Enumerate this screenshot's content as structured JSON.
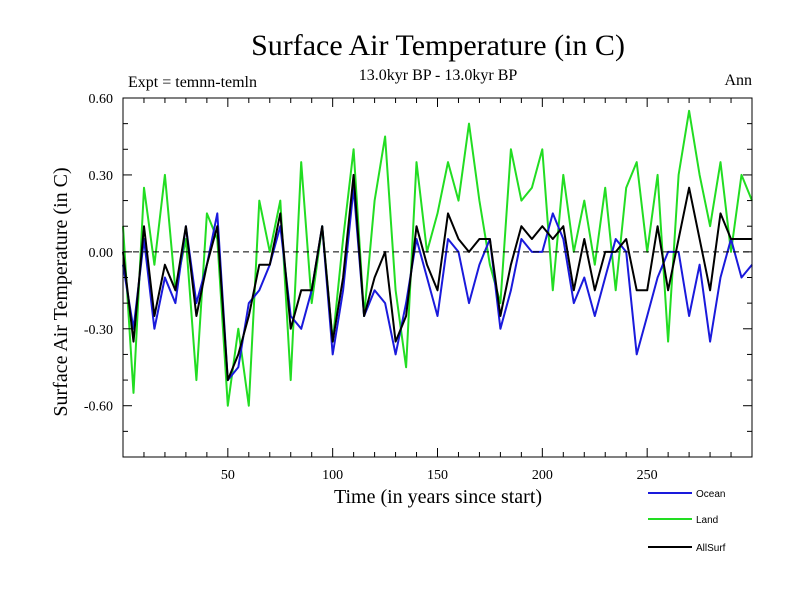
{
  "chart_data": {
    "type": "line",
    "title": "Surface Air Temperature (in C)",
    "subtitle": "13.0kyr BP - 13.0kyr BP",
    "left_label": "Expt = temnn-temln",
    "right_label": "Ann",
    "xlabel": "Time (in years since start)",
    "ylabel": "Surface Air Temperature (in C)",
    "xlim": [
      0,
      300
    ],
    "ylim": [
      -0.8,
      0.6
    ],
    "xticks_labeled": [
      50,
      100,
      150,
      200,
      250
    ],
    "yticks_labeled": [
      0.6,
      0.3,
      0.0,
      -0.3,
      -0.6
    ],
    "ytick_labels": [
      "0.60",
      "0.30",
      "0.00",
      "-0.30",
      "-0.60"
    ],
    "zero_line": "dashed",
    "legend_position": "bottom-right",
    "series": [
      {
        "name": "Ocean",
        "color": "#1a1adc",
        "x_start": 0,
        "x_step": 5,
        "values": [
          -0.05,
          -0.3,
          0.05,
          -0.3,
          -0.1,
          -0.2,
          0.1,
          -0.2,
          -0.05,
          0.15,
          -0.5,
          -0.45,
          -0.2,
          -0.15,
          -0.05,
          0.1,
          -0.25,
          -0.3,
          -0.15,
          0.1,
          -0.4,
          -0.15,
          0.25,
          -0.25,
          -0.15,
          -0.2,
          -0.4,
          -0.2,
          0.05,
          -0.1,
          -0.25,
          0.05,
          0.0,
          -0.2,
          -0.05,
          0.05,
          -0.3,
          -0.15,
          0.05,
          0.0,
          0.0,
          0.15,
          0.05,
          -0.2,
          -0.1,
          -0.25,
          -0.1,
          0.05,
          0.0,
          -0.4,
          -0.25,
          -0.1,
          0.0,
          0.0,
          -0.25,
          -0.05,
          -0.35,
          -0.1,
          0.05,
          -0.1,
          -0.05
        ]
      },
      {
        "name": "Land",
        "color": "#22dd22",
        "x_start": 0,
        "x_step": 5,
        "values": [
          0.1,
          -0.55,
          0.25,
          -0.05,
          0.3,
          -0.15,
          0.05,
          -0.5,
          0.15,
          0.05,
          -0.6,
          -0.3,
          -0.6,
          0.2,
          0.0,
          0.2,
          -0.5,
          0.35,
          -0.2,
          0.1,
          -0.35,
          0.05,
          0.4,
          -0.25,
          0.2,
          0.45,
          -0.15,
          -0.45,
          0.35,
          0.0,
          0.15,
          0.35,
          0.2,
          0.5,
          0.2,
          -0.05,
          -0.2,
          0.4,
          0.2,
          0.25,
          0.4,
          -0.15,
          0.3,
          0.0,
          0.2,
          -0.05,
          0.25,
          -0.15,
          0.25,
          0.35,
          0.0,
          0.3,
          -0.35,
          0.3,
          0.55,
          0.3,
          0.1,
          0.35,
          0.0,
          0.3,
          0.2
        ]
      },
      {
        "name": "AllSurf",
        "color": "#000000",
        "x_start": 0,
        "x_step": 5,
        "values": [
          0.0,
          -0.35,
          0.1,
          -0.25,
          -0.05,
          -0.15,
          0.1,
          -0.25,
          -0.05,
          0.1,
          -0.5,
          -0.4,
          -0.25,
          -0.05,
          -0.05,
          0.15,
          -0.3,
          -0.15,
          -0.15,
          0.1,
          -0.35,
          -0.1,
          0.3,
          -0.25,
          -0.1,
          0.0,
          -0.35,
          -0.25,
          0.1,
          -0.05,
          -0.15,
          0.15,
          0.05,
          0.0,
          0.05,
          0.05,
          -0.25,
          -0.05,
          0.1,
          0.05,
          0.1,
          0.05,
          0.1,
          -0.15,
          0.05,
          -0.15,
          0.0,
          0.0,
          0.05,
          -0.15,
          -0.15,
          0.1,
          -0.15,
          0.05,
          0.25,
          0.05,
          -0.15,
          0.15,
          0.05,
          0.05,
          0.05
        ]
      }
    ]
  }
}
